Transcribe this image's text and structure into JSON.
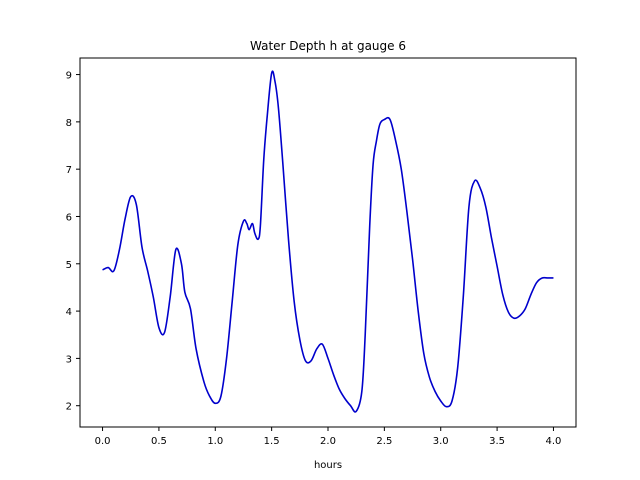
{
  "chart_data": {
    "type": "line",
    "title": "Water Depth h at gauge 6",
    "xlabel": "hours",
    "ylabel": "",
    "xlim": [
      -0.2,
      4.2
    ],
    "ylim": [
      1.55,
      9.35
    ],
    "xticks": [
      0.0,
      0.5,
      1.0,
      1.5,
      2.0,
      2.5,
      3.0,
      3.5,
      4.0
    ],
    "xtick_labels": [
      "0.0",
      "0.5",
      "1.0",
      "1.5",
      "2.0",
      "2.5",
      "3.0",
      "3.5",
      "4.0"
    ],
    "yticks": [
      2,
      3,
      4,
      5,
      6,
      7,
      8,
      9
    ],
    "ytick_labels": [
      "2",
      "3",
      "4",
      "5",
      "6",
      "7",
      "8",
      "9"
    ],
    "grid": false,
    "legend": "none",
    "series": [
      {
        "color": "#0000cc",
        "x": [
          0.0,
          0.05,
          0.1,
          0.15,
          0.2,
          0.25,
          0.3,
          0.35,
          0.4,
          0.45,
          0.5,
          0.55,
          0.6,
          0.65,
          0.7,
          0.73,
          0.78,
          0.83,
          0.9,
          0.95,
          1.0,
          1.05,
          1.1,
          1.15,
          1.2,
          1.25,
          1.28,
          1.3,
          1.33,
          1.35,
          1.38,
          1.4,
          1.43,
          1.46,
          1.5,
          1.53,
          1.56,
          1.6,
          1.65,
          1.7,
          1.75,
          1.8,
          1.85,
          1.9,
          1.95,
          2.0,
          2.05,
          2.1,
          2.15,
          2.2,
          2.25,
          2.3,
          2.33,
          2.37,
          2.4,
          2.43,
          2.46,
          2.5,
          2.55,
          2.6,
          2.65,
          2.7,
          2.75,
          2.8,
          2.85,
          2.9,
          2.95,
          3.0,
          3.05,
          3.1,
          3.15,
          3.2,
          3.25,
          3.3,
          3.35,
          3.4,
          3.45,
          3.5,
          3.55,
          3.6,
          3.65,
          3.7,
          3.75,
          3.8,
          3.85,
          3.9,
          3.95,
          4.0
        ],
        "y": [
          4.87,
          4.92,
          4.85,
          5.3,
          5.95,
          6.42,
          6.25,
          5.35,
          4.85,
          4.3,
          3.65,
          3.55,
          4.3,
          5.3,
          5.0,
          4.4,
          4.05,
          3.2,
          2.5,
          2.2,
          2.05,
          2.2,
          3.0,
          4.2,
          5.4,
          5.9,
          5.85,
          5.72,
          5.85,
          5.65,
          5.52,
          5.8,
          7.2,
          8.1,
          9.03,
          8.85,
          8.3,
          7.1,
          5.5,
          4.2,
          3.4,
          2.95,
          2.95,
          3.2,
          3.3,
          3.0,
          2.65,
          2.35,
          2.15,
          2.0,
          1.88,
          2.3,
          3.5,
          5.8,
          7.1,
          7.6,
          7.95,
          8.05,
          8.05,
          7.6,
          7.0,
          6.1,
          5.1,
          4.0,
          3.1,
          2.6,
          2.3,
          2.1,
          1.98,
          2.1,
          2.8,
          4.3,
          6.2,
          6.75,
          6.6,
          6.2,
          5.55,
          4.95,
          4.35,
          3.98,
          3.85,
          3.9,
          4.05,
          4.35,
          4.6,
          4.7,
          4.7,
          4.7
        ]
      }
    ]
  }
}
